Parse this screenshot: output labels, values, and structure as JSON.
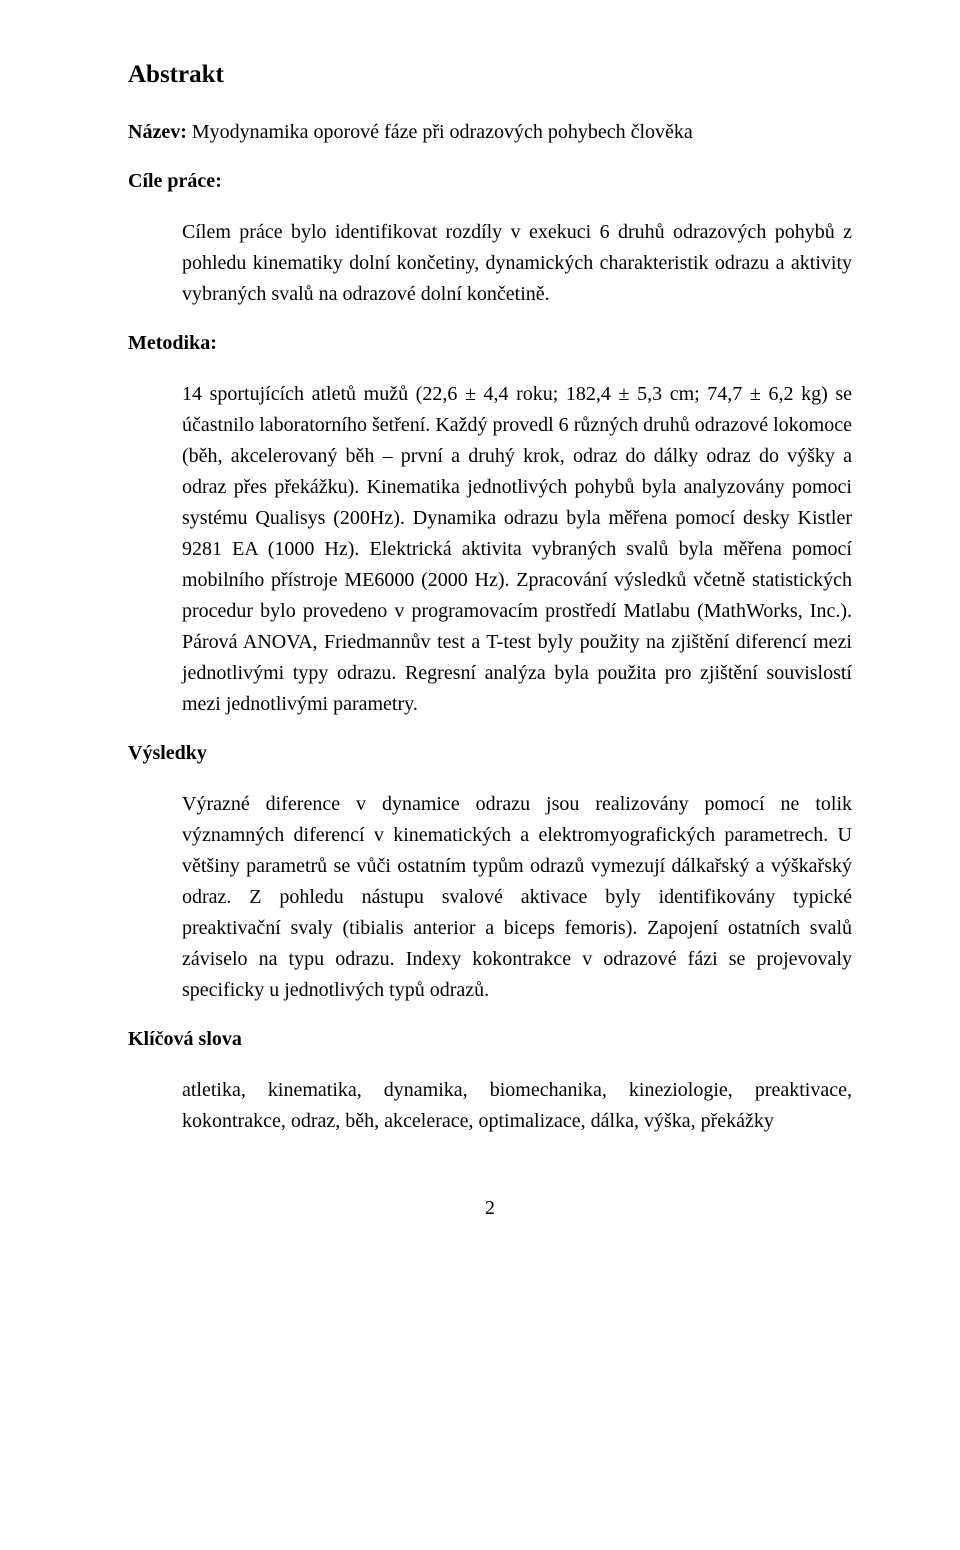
{
  "doc": {
    "heading_main": "Abstrakt",
    "title_label": "Název:",
    "title_text": " Myodynamika oporové fáze při odrazových pohybech člověka",
    "aims_label": "Cíle práce:",
    "aims_text": "Cílem práce bylo identifikovat rozdíly v exekuci 6 druhů odrazových pohybů z pohledu kinematiky dolní končetiny, dynamických charakteristik odrazu a aktivity vybraných svalů na odrazové dolní končetině.",
    "methods_label": "Metodika:",
    "methods_text": "14 sportujících atletů mužů (22,6 ± 4,4 roku; 182,4 ± 5,3 cm; 74,7 ± 6,2 kg) se účastnilo laboratorního šetření. Každý provedl 6 různých druhů odrazové lokomoce (běh, akcelerovaný běh – první a druhý krok, odraz do dálky odraz do výšky a odraz přes překážku). Kinematika jednotlivých pohybů byla analyzovány pomoci systému Qualisys (200Hz). Dynamika odrazu byla měřena pomocí desky Kistler 9281 EA (1000 Hz). Elektrická aktivita vybraných svalů byla měřena pomocí mobilního přístroje ME6000 (2000 Hz). Zpracování výsledků včetně statistických procedur bylo provedeno v programovacím prostředí Matlabu (MathWorks, Inc.). Párová ANOVA, Friedmannův test a T-test byly použity na zjištění diferencí mezi jednotlivými typy odrazu. Regresní analýza byla použita pro zjištění souvislostí mezi jednotlivými parametry.",
    "results_label": "Výsledky",
    "results_text": "Výrazné diference v dynamice odrazu jsou realizovány pomocí ne tolik významných diferencí v kinematických a elektromyografických parametrech. U většiny parametrů se vůči ostatním typům odrazů vymezují dálkařský a výškařský odraz. Z pohledu nástupu svalové aktivace byly identifikovány typické preaktivační svaly (tibialis anterior a biceps femoris). Zapojení ostatních svalů záviselo na typu odrazu. Indexy kokontrakce v odrazové fázi se projevovaly specificky u jednotlivých typů odrazů.",
    "keywords_label": "Klíčová slova",
    "keywords_text": "atletika, kinematika, dynamika, biomechanika, kineziologie, preaktivace, kokontrakce, odraz, běh, akcelerace, optimalizace, dálka, výška, překážky",
    "page_number": "2"
  }
}
